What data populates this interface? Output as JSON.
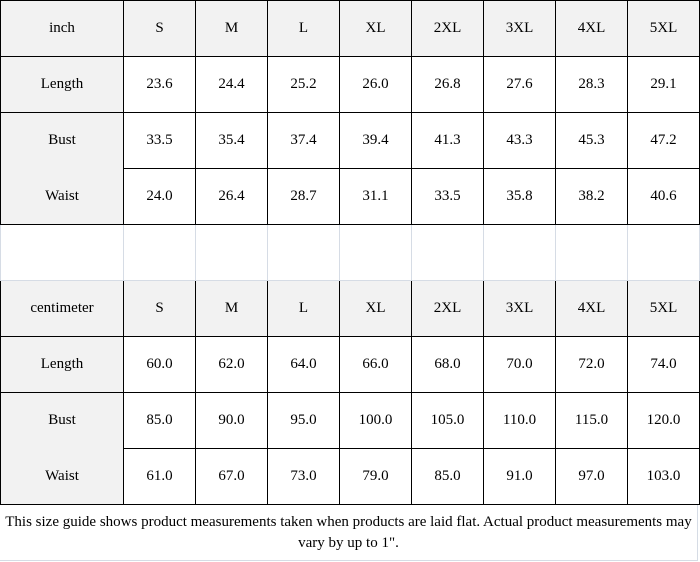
{
  "tables": [
    {
      "unit": "inch",
      "sizes": [
        "S",
        "M",
        "L",
        "XL",
        "2XL",
        "3XL",
        "4XL",
        "5XL"
      ],
      "rows": [
        {
          "label": "Length",
          "values": [
            "23.6",
            "24.4",
            "25.2",
            "26.0",
            "26.8",
            "27.6",
            "28.3",
            "29.1"
          ]
        },
        {
          "label": "Bust",
          "values": [
            "33.5",
            "35.4",
            "37.4",
            "39.4",
            "41.3",
            "43.3",
            "45.3",
            "47.2"
          ]
        },
        {
          "label": "Waist",
          "values": [
            "24.0",
            "26.4",
            "28.7",
            "31.1",
            "33.5",
            "35.8",
            "38.2",
            "40.6"
          ]
        }
      ]
    },
    {
      "unit": "centimeter",
      "sizes": [
        "S",
        "M",
        "L",
        "XL",
        "2XL",
        "3XL",
        "4XL",
        "5XL"
      ],
      "rows": [
        {
          "label": "Length",
          "values": [
            "60.0",
            "62.0",
            "64.0",
            "66.0",
            "68.0",
            "70.0",
            "72.0",
            "74.0"
          ]
        },
        {
          "label": "Bust",
          "values": [
            "85.0",
            "90.0",
            "95.0",
            "100.0",
            "105.0",
            "110.0",
            "115.0",
            "120.0"
          ]
        },
        {
          "label": "Waist",
          "values": [
            "61.0",
            "67.0",
            "73.0",
            "79.0",
            "85.0",
            "91.0",
            "97.0",
            "103.0"
          ]
        }
      ]
    }
  ],
  "footer": {
    "note": "This size guide shows product measurements taken when products are laid flat. Actual product measurements may vary by up to 1\"."
  },
  "colors": {
    "header_bg": "#f2f2f2",
    "border": "#000000",
    "gap_border": "#d6dce5"
  }
}
